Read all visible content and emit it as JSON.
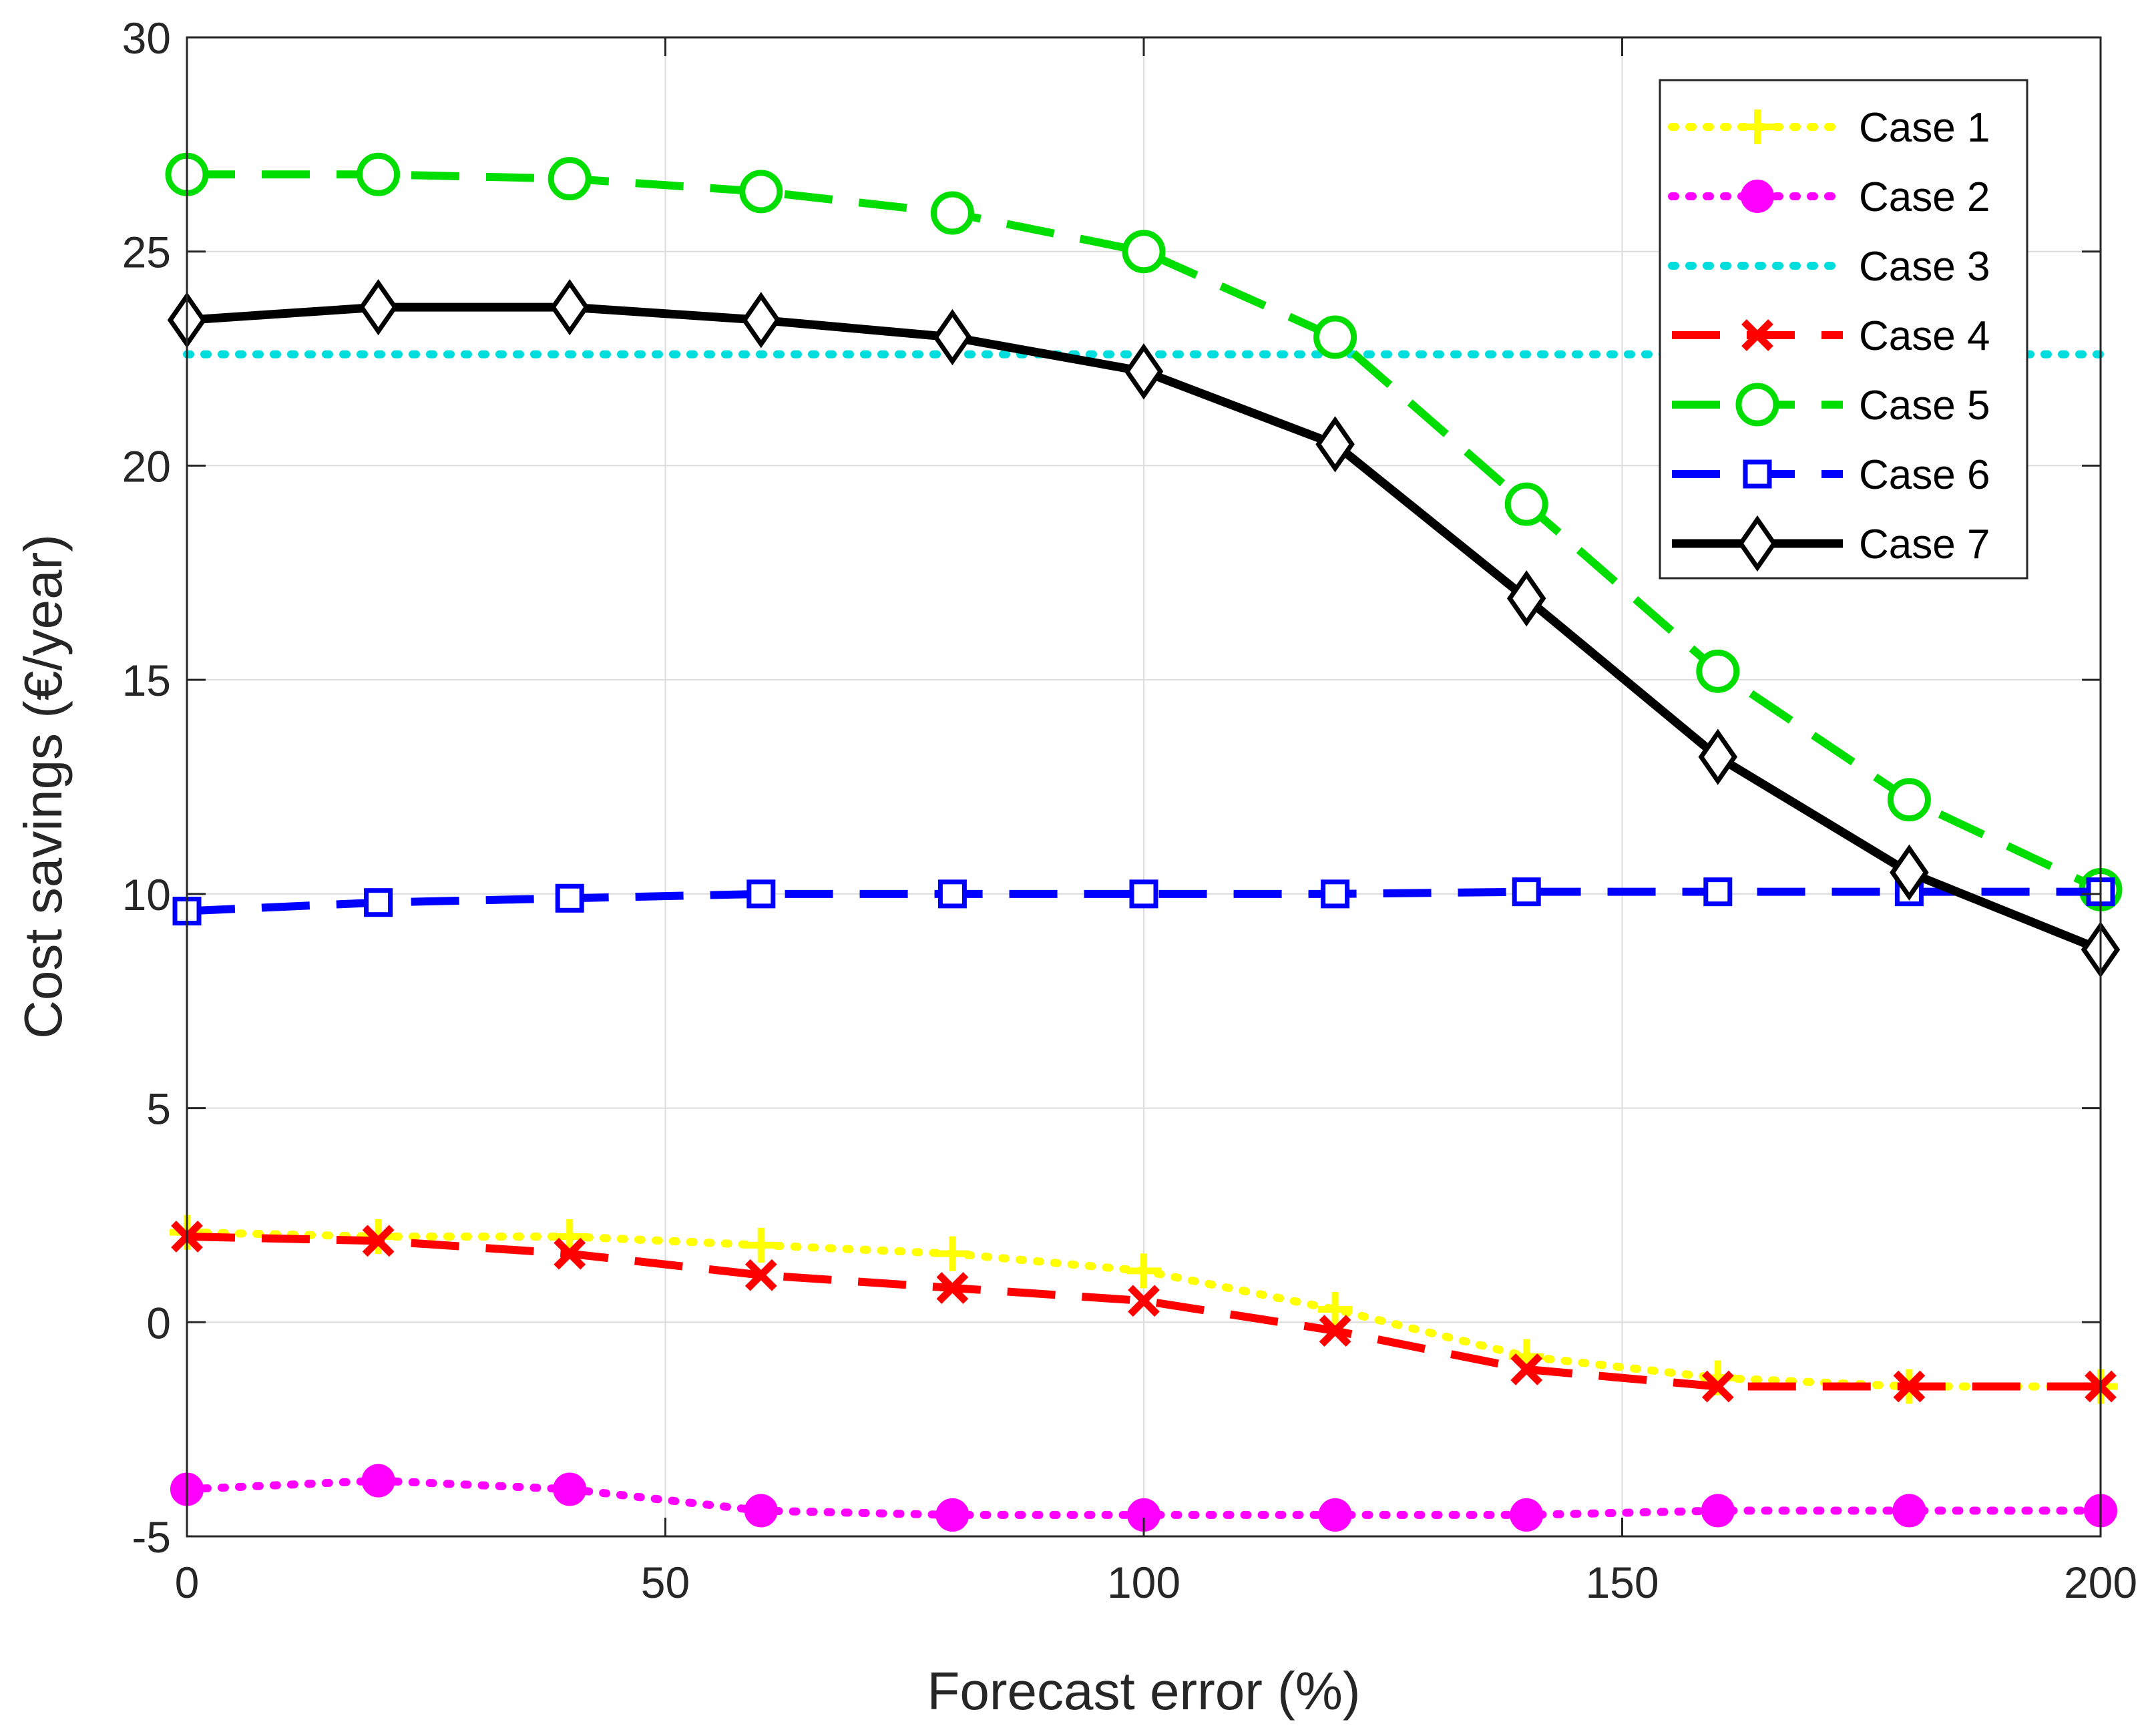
{
  "chart_data": {
    "type": "line",
    "title": "",
    "xlabel": "Forecast error (%)",
    "ylabel": "Cost savings (€/year)",
    "xlim": [
      0,
      200
    ],
    "ylim": [
      -5,
      30
    ],
    "xticks": [
      0,
      50,
      100,
      150,
      200
    ],
    "yticks": [
      -5,
      0,
      5,
      10,
      15,
      20,
      25,
      30
    ],
    "xtick_labels": [
      "0",
      "50",
      "100",
      "150",
      "200"
    ],
    "ytick_labels": [
      "-5",
      "0",
      "5",
      "10",
      "15",
      "20",
      "25",
      "30"
    ],
    "grid": true,
    "legend_position": "top-right",
    "x": [
      0,
      20,
      40,
      60,
      80,
      100,
      120,
      140,
      160,
      180,
      200
    ],
    "series": [
      {
        "name": "Case 1",
        "color": "#ffff00",
        "line": "dotted",
        "marker": "plus",
        "values": [
          2.1,
          2.0,
          2.0,
          1.8,
          1.6,
          1.2,
          0.3,
          -0.8,
          -1.3,
          -1.5,
          -1.5
        ]
      },
      {
        "name": "Case 2",
        "color": "#ff00ff",
        "line": "dotted",
        "marker": "filled-circle",
        "values": [
          -3.9,
          -3.7,
          -3.9,
          -4.4,
          -4.5,
          -4.5,
          -4.5,
          -4.5,
          -4.4,
          -4.4,
          -4.4
        ]
      },
      {
        "name": "Case 3",
        "color": "#00dddd",
        "line": "dotted",
        "marker": "none",
        "values": [
          22.6,
          22.6,
          22.6,
          22.6,
          22.6,
          22.6,
          22.6,
          22.6,
          22.6,
          22.6,
          22.6
        ]
      },
      {
        "name": "Case 4",
        "color": "#ff0000",
        "line": "dashed",
        "marker": "x",
        "values": [
          2.0,
          1.9,
          1.6,
          1.1,
          0.8,
          0.5,
          -0.2,
          -1.1,
          -1.5,
          -1.5,
          -1.5
        ]
      },
      {
        "name": "Case 5",
        "color": "#00dd00",
        "line": "dashed",
        "marker": "circle",
        "values": [
          26.8,
          26.8,
          26.7,
          26.4,
          25.9,
          25.0,
          23.0,
          19.1,
          15.2,
          12.2,
          10.1
        ]
      },
      {
        "name": "Case 6",
        "color": "#0000ff",
        "line": "dashed",
        "marker": "square",
        "values": [
          9.6,
          9.8,
          9.9,
          10.0,
          10.0,
          10.0,
          10.0,
          10.05,
          10.05,
          10.05,
          10.05
        ]
      },
      {
        "name": "Case 7",
        "color": "#000000",
        "line": "solid",
        "marker": "diamond",
        "values": [
          23.4,
          23.7,
          23.7,
          23.4,
          23.0,
          22.2,
          20.5,
          16.9,
          13.2,
          10.5,
          8.7
        ]
      }
    ]
  }
}
